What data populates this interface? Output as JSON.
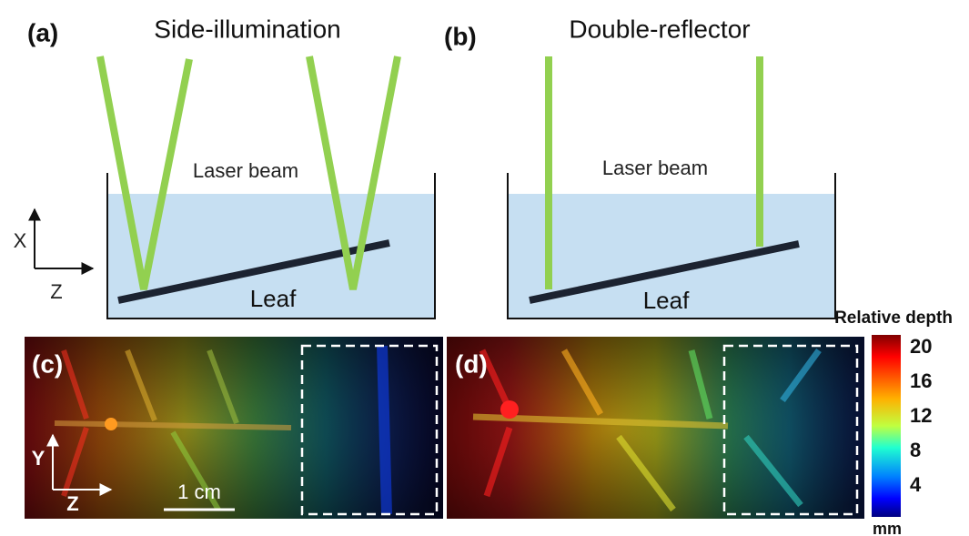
{
  "panel_a": {
    "label": "(a)",
    "title": "Side-illumination",
    "beam_label": "Laser beam",
    "leaf_label": "Leaf",
    "axis_x": "X",
    "axis_z": "Z"
  },
  "panel_b": {
    "label": "(b)",
    "title": "Double-reflector",
    "beam_label": "Laser beam",
    "leaf_label": "Leaf"
  },
  "panel_c": {
    "label": "(c)",
    "axis_y": "Y",
    "axis_z": "Z",
    "scale_bar": "1 cm"
  },
  "panel_d": {
    "label": "(d)"
  },
  "colorbar": {
    "title": "Relative depth",
    "ticks": [
      20,
      16,
      12,
      8,
      4
    ],
    "unit": "mm"
  }
}
